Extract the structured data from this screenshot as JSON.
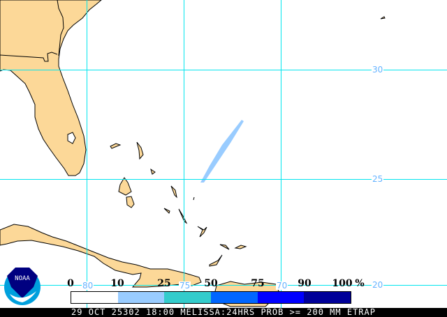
{
  "map": {
    "grid_color": "#00e5ee",
    "land_color": "#fcd898",
    "latitude_labels": [
      "30",
      "25",
      "20"
    ],
    "longitude_labels": [
      "80",
      "75",
      "70"
    ],
    "swath_color": "#99ccff"
  },
  "legend": {
    "ticks": [
      "0",
      "10",
      "25",
      "50",
      "75",
      "90",
      "100"
    ],
    "unit": "%",
    "bins": [
      {
        "range": "0-10",
        "color": "#ffffff"
      },
      {
        "range": "10-25",
        "color": "#99ccff"
      },
      {
        "range": "25-50",
        "color": "#33cccc"
      },
      {
        "range": "50-75",
        "color": "#0066ff"
      },
      {
        "range": "75-90",
        "color": "#0000ff"
      },
      {
        "range": "90-100",
        "color": "#000099"
      }
    ]
  },
  "logo": {
    "text": "NOAA"
  },
  "footer": {
    "caption": "29 OCT 25302 18:00 MELISSA:24HRS PROB >= 200 MM ETRAP"
  }
}
